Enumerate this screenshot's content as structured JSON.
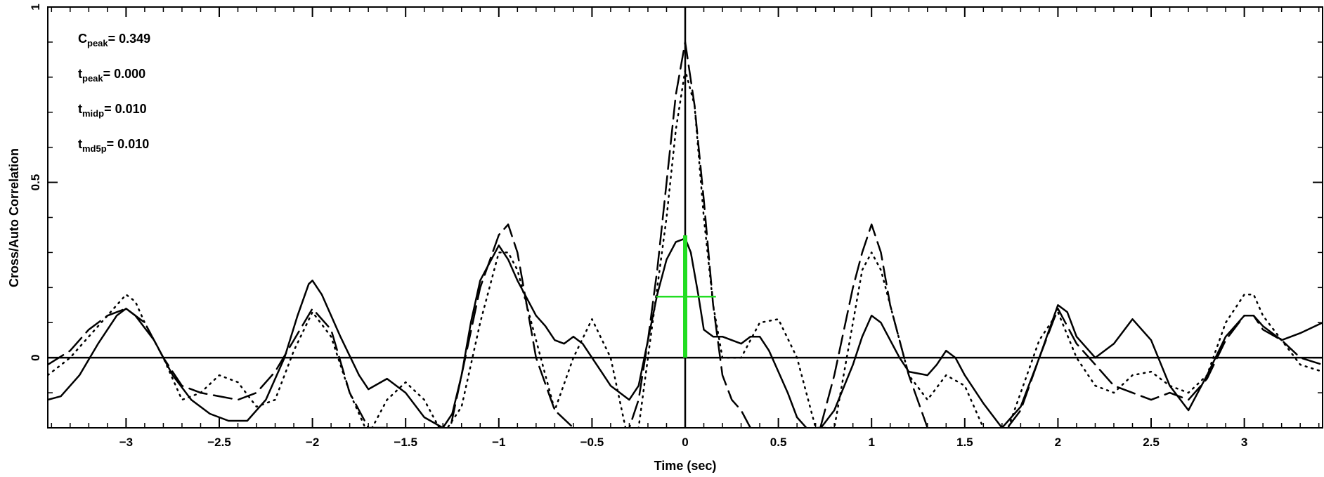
{
  "chart_data": {
    "type": "line",
    "title": "",
    "xlabel": "Time (sec)",
    "ylabel": "Cross/Auto Correlation",
    "xlim": [
      -3.42,
      3.42
    ],
    "ylim": [
      -0.2,
      1.0
    ],
    "xticks": [
      -3,
      -2.5,
      -2,
      -1.5,
      -1,
      -0.5,
      0,
      0.5,
      1,
      1.5,
      2,
      2.5,
      3
    ],
    "xtick_labels": [
      "−3",
      "−2.5",
      "−2",
      "−1.5",
      "−1",
      "−0.5",
      "0",
      "0.5",
      "1",
      "1.5",
      "2",
      "2.5",
      "3"
    ],
    "yticks": [
      0,
      0.5,
      1
    ],
    "ytick_labels": [
      "0",
      "0.5",
      "1"
    ],
    "grid": false,
    "series": [
      {
        "style": "solid",
        "color": "#000000",
        "x": [
          -3.42,
          -3.35,
          -3.25,
          -3.15,
          -3.05,
          -3.0,
          -2.95,
          -2.85,
          -2.75,
          -2.65,
          -2.55,
          -2.45,
          -2.35,
          -2.25,
          -2.15,
          -2.08,
          -2.02,
          -2.0,
          -1.95,
          -1.85,
          -1.75,
          -1.7,
          -1.6,
          -1.5,
          -1.4,
          -1.3,
          -1.25,
          -1.2,
          -1.15,
          -1.1,
          -1.0,
          -0.95,
          -0.9,
          -0.8,
          -0.75,
          -0.7,
          -0.65,
          -0.6,
          -0.55,
          -0.5,
          -0.45,
          -0.4,
          -0.3,
          -0.25,
          -0.2,
          -0.15,
          -0.1,
          -0.05,
          0.0,
          0.03,
          0.07,
          0.1,
          0.15,
          0.2,
          0.25,
          0.3,
          0.35,
          0.4,
          0.45,
          0.5,
          0.55,
          0.6,
          0.65,
          0.7,
          0.8,
          0.9,
          0.95,
          1.0,
          1.05,
          1.1,
          1.15,
          1.2,
          1.3,
          1.35,
          1.4,
          1.45,
          1.5,
          1.6,
          1.7,
          1.8,
          1.9,
          2.0,
          2.05,
          2.1,
          2.2,
          2.3,
          2.4,
          2.5,
          2.6,
          2.7,
          2.8,
          2.9,
          3.0,
          3.05,
          3.1,
          3.2,
          3.3,
          3.42
        ],
        "y": [
          -0.12,
          -0.11,
          -0.05,
          0.04,
          0.12,
          0.14,
          0.12,
          0.05,
          -0.05,
          -0.12,
          -0.16,
          -0.18,
          -0.18,
          -0.12,
          0.0,
          0.12,
          0.21,
          0.22,
          0.18,
          0.06,
          -0.05,
          -0.09,
          -0.06,
          -0.1,
          -0.17,
          -0.2,
          -0.16,
          -0.05,
          0.1,
          0.22,
          0.32,
          0.28,
          0.22,
          0.12,
          0.09,
          0.05,
          0.04,
          0.06,
          0.04,
          0.0,
          -0.04,
          -0.08,
          -0.12,
          -0.08,
          0.05,
          0.18,
          0.28,
          0.33,
          0.34,
          0.3,
          0.18,
          0.08,
          0.06,
          0.06,
          0.05,
          0.04,
          0.06,
          0.06,
          0.02,
          -0.04,
          -0.1,
          -0.17,
          -0.2,
          -0.22,
          -0.15,
          -0.02,
          0.06,
          0.12,
          0.1,
          0.05,
          0.0,
          -0.04,
          -0.05,
          -0.02,
          0.02,
          0.0,
          -0.05,
          -0.13,
          -0.2,
          -0.14,
          0.0,
          0.15,
          0.13,
          0.06,
          0.0,
          0.04,
          0.11,
          0.05,
          -0.08,
          -0.15,
          -0.05,
          0.06,
          0.12,
          0.12,
          0.09,
          0.05,
          0.07,
          0.1
        ]
      },
      {
        "style": "dashed",
        "color": "#000000",
        "x": [
          -3.42,
          -3.3,
          -3.2,
          -3.1,
          -3.0,
          -2.95,
          -2.9,
          -2.8,
          -2.7,
          -2.6,
          -2.5,
          -2.4,
          -2.3,
          -2.2,
          -2.1,
          -2.0,
          -1.9,
          -1.8,
          -1.7,
          -1.6,
          -1.5,
          -1.4,
          -1.3,
          -1.2,
          -1.1,
          -1.0,
          -0.95,
          -0.9,
          -0.8,
          -0.7,
          -0.6,
          -0.5,
          -0.4,
          -0.3,
          -0.25,
          -0.2,
          -0.15,
          -0.1,
          -0.05,
          0.0,
          0.05,
          0.1,
          0.15,
          0.2,
          0.25,
          0.3,
          0.35,
          0.4,
          0.5,
          0.6,
          0.7,
          0.8,
          0.9,
          0.95,
          1.0,
          1.05,
          1.1,
          1.2,
          1.3,
          1.4,
          1.5,
          1.6,
          1.7,
          1.8,
          1.9,
          2.0,
          2.1,
          2.2,
          2.3,
          2.4,
          2.5,
          2.6,
          2.7,
          2.8,
          2.9,
          3.0,
          3.05,
          3.1,
          3.2,
          3.3,
          3.42
        ],
        "y": [
          -0.02,
          0.02,
          0.08,
          0.12,
          0.14,
          0.12,
          0.1,
          0.0,
          -0.08,
          -0.1,
          -0.11,
          -0.12,
          -0.1,
          -0.04,
          0.05,
          0.14,
          0.08,
          -0.1,
          -0.2,
          -0.2,
          -0.25,
          -0.35,
          -0.3,
          -0.05,
          0.2,
          0.35,
          0.38,
          0.3,
          0.0,
          -0.15,
          -0.2,
          -0.35,
          -0.3,
          -0.2,
          -0.12,
          0.05,
          0.25,
          0.5,
          0.75,
          0.9,
          0.72,
          0.45,
          0.15,
          -0.05,
          -0.12,
          -0.15,
          -0.2,
          -0.25,
          -0.3,
          -0.3,
          -0.25,
          -0.05,
          0.2,
          0.3,
          0.38,
          0.3,
          0.15,
          -0.05,
          -0.2,
          -0.3,
          -0.35,
          -0.3,
          -0.22,
          -0.15,
          0.0,
          0.14,
          0.04,
          -0.02,
          -0.08,
          -0.1,
          -0.12,
          -0.1,
          -0.12,
          -0.06,
          0.05,
          0.12,
          0.12,
          0.08,
          0.05,
          0.0,
          -0.02
        ]
      },
      {
        "style": "dotted",
        "color": "#000000",
        "x": [
          -3.42,
          -3.3,
          -3.2,
          -3.1,
          -3.0,
          -2.95,
          -2.9,
          -2.8,
          -2.7,
          -2.6,
          -2.5,
          -2.4,
          -2.3,
          -2.2,
          -2.1,
          -2.0,
          -1.9,
          -1.8,
          -1.7,
          -1.6,
          -1.5,
          -1.4,
          -1.3,
          -1.2,
          -1.1,
          -1.0,
          -0.95,
          -0.9,
          -0.8,
          -0.7,
          -0.6,
          -0.5,
          -0.4,
          -0.3,
          -0.25,
          -0.2,
          -0.1,
          -0.05,
          0.0,
          0.05,
          0.1,
          0.15,
          0.2,
          0.3,
          0.4,
          0.5,
          0.6,
          0.7,
          0.8,
          0.9,
          0.95,
          1.0,
          1.05,
          1.1,
          1.2,
          1.3,
          1.4,
          1.5,
          1.6,
          1.7,
          1.8,
          1.9,
          2.0,
          2.1,
          2.2,
          2.3,
          2.4,
          2.5,
          2.6,
          2.7,
          2.8,
          2.9,
          3.0,
          3.05,
          3.1,
          3.2,
          3.3,
          3.42
        ],
        "y": [
          -0.05,
          0.0,
          0.06,
          0.12,
          0.18,
          0.16,
          0.1,
          0.0,
          -0.12,
          -0.1,
          -0.05,
          -0.07,
          -0.14,
          -0.12,
          0.02,
          0.13,
          0.06,
          -0.1,
          -0.22,
          -0.12,
          -0.07,
          -0.12,
          -0.22,
          -0.14,
          0.1,
          0.3,
          0.3,
          0.25,
          0.05,
          -0.15,
          0.0,
          0.11,
          0.0,
          -0.25,
          -0.2,
          0.0,
          0.4,
          0.65,
          0.82,
          0.72,
          0.4,
          0.15,
          0.0,
          0.0,
          0.1,
          0.11,
          0.0,
          -0.2,
          -0.2,
          0.1,
          0.25,
          0.3,
          0.25,
          0.15,
          -0.05,
          -0.12,
          -0.05,
          -0.08,
          -0.2,
          -0.25,
          -0.1,
          0.05,
          0.13,
          0.0,
          -0.08,
          -0.1,
          -0.05,
          -0.04,
          -0.08,
          -0.1,
          -0.05,
          0.1,
          0.18,
          0.18,
          0.12,
          0.05,
          -0.02,
          -0.04
        ]
      }
    ],
    "marker": {
      "color": "#22dd22",
      "center": [
        0.0,
        0.174
      ],
      "x_extent": [
        -0.155,
        0.165
      ],
      "y_extent": [
        0.0,
        0.349
      ]
    },
    "annotations": [
      {
        "main": "C",
        "sub": "peak",
        "value": "=   0.349"
      },
      {
        "main": "t",
        "sub": "peak",
        "value": "=   0.000"
      },
      {
        "main": "t",
        "sub": "midp",
        "value": "=   0.010"
      },
      {
        "main": "t",
        "sub": "md5p",
        "value": "=   0.010"
      }
    ]
  }
}
